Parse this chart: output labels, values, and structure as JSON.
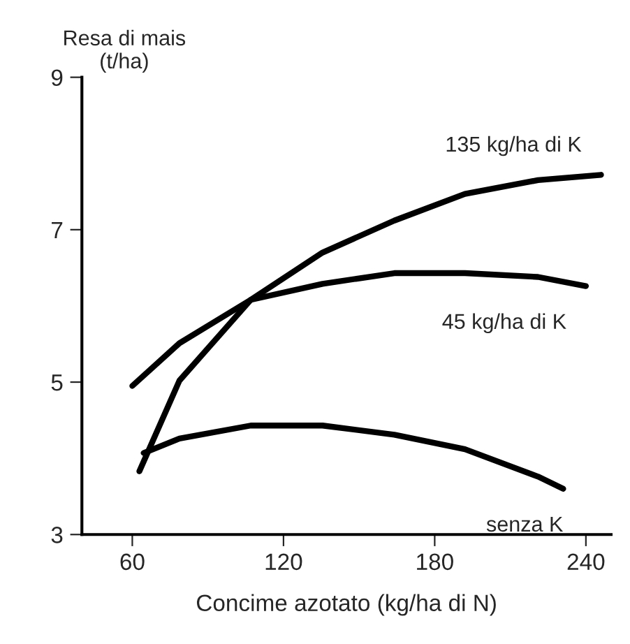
{
  "chart_data": {
    "type": "line",
    "xlabel": "Concime azotato (kg/ha di N)",
    "ylabel": "Resa di mais\n(t/ha)",
    "xlim": [
      40,
      250
    ],
    "xticks": [
      60,
      120,
      180,
      240
    ],
    "ylim": [
      3,
      9
    ],
    "yticks": [
      3,
      5,
      7,
      9
    ],
    "grid": false,
    "legend": false,
    "marker": "none",
    "line_style": "solid",
    "series": [
      {
        "name": "135 kg/ha di K",
        "color": "#000000",
        "x": [
          62.8,
          78.7,
          107,
          135.5,
          164,
          192,
          221,
          246
        ],
        "values": [
          3.83,
          5.02,
          6.08,
          6.7,
          7.12,
          7.47,
          7.65,
          7.72
        ]
      },
      {
        "name": "45 kg/ha di K",
        "color": "#000000",
        "x": [
          60,
          78.7,
          107,
          135.5,
          164,
          192,
          221,
          240
        ],
        "values": [
          4.95,
          5.51,
          6.08,
          6.29,
          6.43,
          6.43,
          6.38,
          6.26
        ]
      },
      {
        "name": "senza K",
        "color": "#000000",
        "x": [
          64.5,
          78.7,
          107,
          135.5,
          164,
          192,
          221,
          231
        ],
        "values": [
          4.07,
          4.26,
          4.43,
          4.43,
          4.31,
          4.12,
          3.76,
          3.6
        ]
      }
    ]
  }
}
